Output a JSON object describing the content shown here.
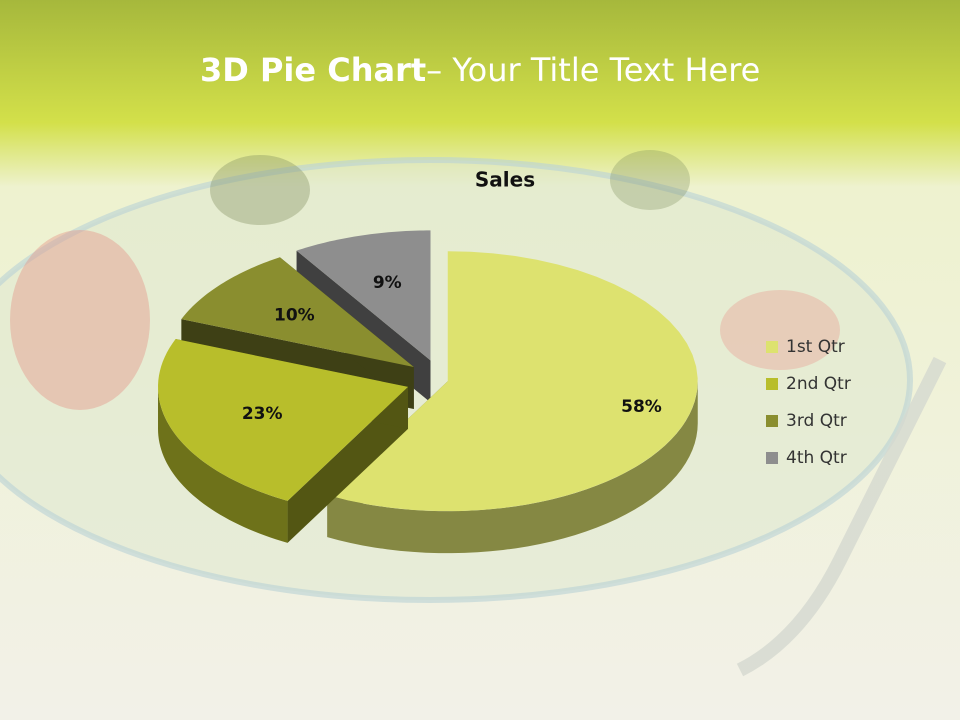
{
  "slide": {
    "title_bold": "3D Pie Chart",
    "title_rest": "– Your Title Text Here"
  },
  "chart_data": {
    "type": "pie3d",
    "title": "Sales",
    "categories": [
      "1st Qtr",
      "2nd Qtr",
      "3rd Qtr",
      "4th Qtr"
    ],
    "values": [
      58,
      23,
      10,
      9
    ],
    "value_labels": [
      "58%",
      "23%",
      "10%",
      "9%"
    ],
    "colors": [
      "#dde26f",
      "#b8be2b",
      "#8a8e2f",
      "#8e8e8e"
    ],
    "legend": "right"
  }
}
